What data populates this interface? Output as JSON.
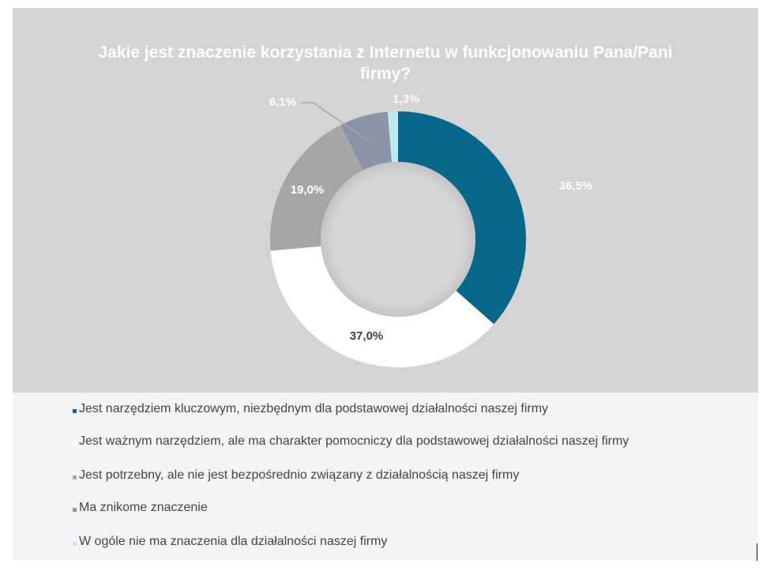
{
  "chart_data": {
    "type": "pie",
    "variant": "donut",
    "title": "Jakie jest znaczenie korzystania z Internetu w funkcjonowaniu Pana/Pani firmy?",
    "title_lines": [
      "Jakie jest znaczenie korzystania z Internetu w funkcjonowaniu Pana/Pani",
      "firmy?"
    ],
    "legend_position": "bottom",
    "slices": [
      {
        "label": "Jest narzędziem kluczowym, niezbędnym dla podstawowej działalności naszej firmy",
        "value": 36.5,
        "value_label": "36,5%",
        "color": "#06678a",
        "label_color": "#ffffff"
      },
      {
        "label": "Jest ważnym narzędziem, ale ma charakter pomocniczy dla podstawowej działalności naszej firmy",
        "value": 37.0,
        "value_label": "37,0%",
        "color": "#ffffff",
        "label_color": "#404040"
      },
      {
        "label": "Jest potrzebny, ale nie jest bezpośrednio związany z działalnością naszej firmy",
        "value": 19.0,
        "value_label": "19,0%",
        "color": "#a6a6a6",
        "label_color": "#ffffff"
      },
      {
        "label": "Ma znikome znaczenie",
        "value": 6.1,
        "value_label": "6,1%",
        "color": "#8a94a6",
        "label_color": "#ffffff"
      },
      {
        "label": "W ogóle nie ma znaczenia dla działalności naszej firmy",
        "value": 1.3,
        "value_label": "1,3%",
        "color": "#bfe8f5",
        "label_color": "#ffffff"
      }
    ]
  }
}
